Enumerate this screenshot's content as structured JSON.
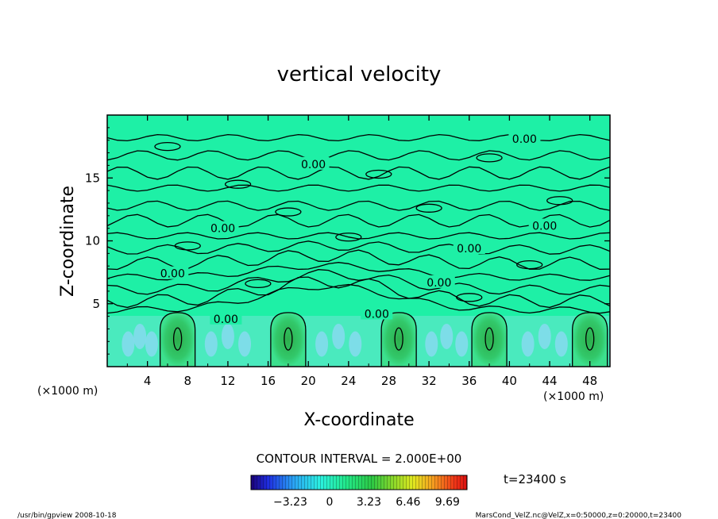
{
  "chart_data": {
    "type": "heatmap",
    "title": "vertical velocity",
    "xlabel": "X-coordinate",
    "ylabel": "Z-coordinate",
    "x_unit_left": "(×1000 m)",
    "x_unit_right": "(×1000 m)",
    "xlim": [
      0,
      50
    ],
    "ylim": [
      0,
      20
    ],
    "x_ticks": [
      4,
      8,
      12,
      16,
      20,
      24,
      28,
      32,
      36,
      40,
      44,
      48
    ],
    "y_ticks": [
      5,
      10,
      15
    ],
    "updraft_centers_x": [
      7,
      18,
      29,
      38,
      48
    ],
    "contour_interval_label": "CONTOUR INTERVAL = 2.000E+00",
    "contour_labels": [
      {
        "x": 20.5,
        "z": 16.1,
        "text": "0.00"
      },
      {
        "x": 41.5,
        "z": 18.1,
        "text": "0.00"
      },
      {
        "x": 11.5,
        "z": 11.0,
        "text": "0.00"
      },
      {
        "x": 6.5,
        "z": 7.4,
        "text": "0.00"
      },
      {
        "x": 43.5,
        "z": 11.2,
        "text": "0.00"
      },
      {
        "x": 36.0,
        "z": 9.4,
        "text": "0.00"
      },
      {
        "x": 33.0,
        "z": 6.7,
        "text": "0.00"
      },
      {
        "x": 11.8,
        "z": 3.8,
        "text": "0.00"
      },
      {
        "x": 26.8,
        "z": 4.2,
        "text": "0.00"
      }
    ],
    "colorbar": {
      "ticks": [
        "−3.23",
        "0",
        "3.23",
        "6.46",
        "9.69"
      ],
      "tick_values": [
        -3.23,
        0,
        3.23,
        6.46,
        9.69
      ],
      "range": [
        -6.46,
        11.3
      ]
    },
    "time_label": "t=23400 s",
    "grid": false
  },
  "footer": {
    "left": "/usr/bin/gpview   2008-10-18",
    "right": "MarsCond_VelZ.nc@VelZ,x=0:50000,z=0:20000,t=23400"
  },
  "colors": {
    "background_field": "#1ef0a6",
    "updraft": "#2ec85a",
    "downdraft": "#8fd8f5"
  }
}
